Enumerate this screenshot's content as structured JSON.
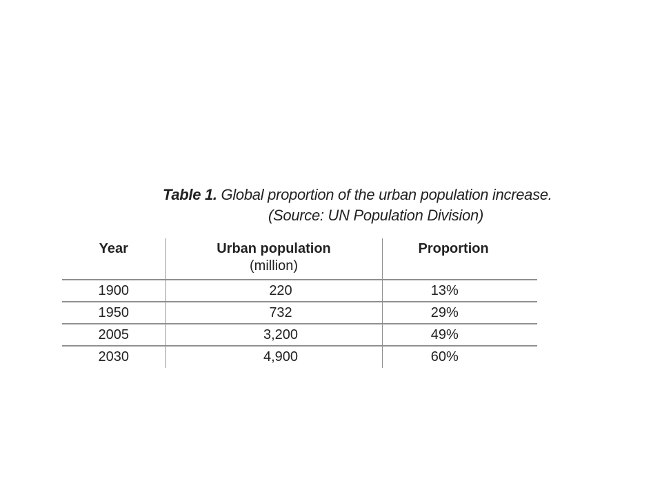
{
  "caption": {
    "label": "Table 1.",
    "text": "Global proportion of the urban population increase.",
    "source": "(Source: UN Population Division)"
  },
  "table": {
    "headers": {
      "year": "Year",
      "urban_population": "Urban population",
      "urban_population_unit": "(million)",
      "proportion": "Proportion"
    },
    "rows": [
      {
        "year": "1900",
        "urban_population": "220",
        "proportion": "13%"
      },
      {
        "year": "1950",
        "urban_population": "732",
        "proportion": "29%"
      },
      {
        "year": "2005",
        "urban_population": "3,200",
        "proportion": "49%"
      },
      {
        "year": "2030",
        "urban_population": "4,900",
        "proportion": "60%"
      }
    ]
  }
}
